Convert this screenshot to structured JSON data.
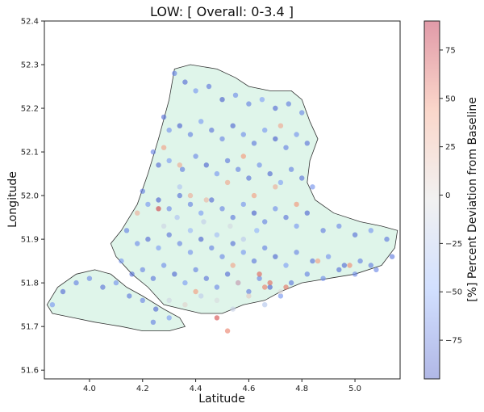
{
  "chart_data": {
    "type": "scatter",
    "title": "LOW: [ Overall: 0-3.4 ]",
    "xlabel": "Latitude",
    "ylabel": "Longitude",
    "xlim": [
      3.83,
      5.17
    ],
    "ylim": [
      51.58,
      52.4
    ],
    "xticks": [
      "4.0",
      "4.2",
      "4.4",
      "4.6",
      "4.8",
      "5.0"
    ],
    "xtick_values": [
      4.0,
      4.2,
      4.4,
      4.6,
      4.8,
      5.0
    ],
    "yticks": [
      "51.6",
      "51.7",
      "51.8",
      "51.9",
      "52.0",
      "52.1",
      "52.2",
      "52.3",
      "52.4"
    ],
    "ytick_values": [
      51.6,
      51.7,
      51.8,
      51.9,
      52.0,
      52.1,
      52.2,
      52.3,
      52.4
    ],
    "grid": false,
    "colormap": "coolwarm",
    "colorbar": {
      "label": "[%] Percent Deviation from Baseline",
      "range": [
        -95,
        90
      ],
      "ticks": [
        "75",
        "50",
        "25",
        "0",
        "−25",
        "−50",
        "−75"
      ],
      "tick_values": [
        75,
        50,
        25,
        0,
        -25,
        -50,
        -75
      ]
    },
    "region_fill": "#dff5ea",
    "region_outline": "#333333",
    "region_polygon": [
      [
        4.32,
        52.29
      ],
      [
        4.38,
        52.3
      ],
      [
        4.48,
        52.29
      ],
      [
        4.55,
        52.27
      ],
      [
        4.6,
        52.25
      ],
      [
        4.68,
        52.24
      ],
      [
        4.76,
        52.24
      ],
      [
        4.8,
        52.22
      ],
      [
        4.83,
        52.17
      ],
      [
        4.86,
        52.13
      ],
      [
        4.83,
        52.08
      ],
      [
        4.82,
        52.03
      ],
      [
        4.85,
        51.99
      ],
      [
        4.92,
        51.96
      ],
      [
        5.02,
        51.94
      ],
      [
        5.1,
        51.93
      ],
      [
        5.16,
        51.92
      ],
      [
        5.15,
        51.88
      ],
      [
        5.1,
        51.84
      ],
      [
        5.0,
        51.82
      ],
      [
        4.9,
        51.81
      ],
      [
        4.8,
        51.8
      ],
      [
        4.72,
        51.78
      ],
      [
        4.66,
        51.76
      ],
      [
        4.58,
        51.75
      ],
      [
        4.5,
        51.73
      ],
      [
        4.42,
        51.73
      ],
      [
        4.35,
        51.74
      ],
      [
        4.28,
        51.75
      ],
      [
        4.22,
        51.79
      ],
      [
        4.16,
        51.82
      ],
      [
        4.1,
        51.86
      ],
      [
        4.08,
        51.89
      ],
      [
        4.12,
        51.92
      ],
      [
        4.18,
        51.98
      ],
      [
        4.22,
        52.05
      ],
      [
        4.26,
        52.13
      ],
      [
        4.3,
        52.22
      ]
    ],
    "island_polygon": [
      [
        3.84,
        51.75
      ],
      [
        3.88,
        51.79
      ],
      [
        3.95,
        51.82
      ],
      [
        4.02,
        51.83
      ],
      [
        4.08,
        51.82
      ],
      [
        4.14,
        51.79
      ],
      [
        4.2,
        51.77
      ],
      [
        4.28,
        51.74
      ],
      [
        4.34,
        51.72
      ],
      [
        4.36,
        51.7
      ],
      [
        4.3,
        51.69
      ],
      [
        4.2,
        51.69
      ],
      [
        4.12,
        51.7
      ],
      [
        4.02,
        51.71
      ],
      [
        3.94,
        51.72
      ],
      [
        3.86,
        51.73
      ]
    ],
    "series": [
      {
        "x": [
          4.32,
          4.36,
          4.4,
          4.45,
          4.5,
          4.55,
          4.6,
          4.65,
          4.7,
          4.75,
          4.8,
          4.28,
          4.3,
          4.34,
          4.38,
          4.42,
          4.46,
          4.5,
          4.54,
          4.58,
          4.62,
          4.66,
          4.7,
          4.74,
          4.78,
          4.82,
          4.24,
          4.26,
          4.3,
          4.35,
          4.4,
          4.44,
          4.48,
          4.52,
          4.56,
          4.6,
          4.64,
          4.68,
          4.72,
          4.76,
          4.8,
          4.84,
          4.2,
          4.22,
          4.26,
          4.3,
          4.34,
          4.38,
          4.42,
          4.46,
          4.5,
          4.54,
          4.58,
          4.62,
          4.66,
          4.7,
          4.74,
          4.78,
          4.82,
          4.88,
          4.94,
          5.0,
          5.06,
          5.12,
          4.14,
          4.18,
          4.22,
          4.26,
          4.3,
          4.34,
          4.38,
          4.42,
          4.46,
          4.5,
          4.54,
          4.58,
          4.62,
          4.66,
          4.7,
          4.74,
          4.78,
          4.84,
          4.9,
          4.96,
          5.02,
          5.08,
          5.14,
          4.12,
          4.16,
          4.2,
          4.24,
          4.28,
          4.32,
          4.36,
          4.4,
          4.44,
          4.48,
          4.52,
          4.56,
          4.6,
          4.64,
          4.68,
          4.72,
          4.76,
          4.82,
          4.88,
          4.94,
          5.0,
          5.06,
          3.86,
          3.9,
          3.95,
          4.0,
          4.05,
          4.1,
          4.15,
          4.2,
          4.25,
          4.3,
          4.24,
          4.3,
          4.36,
          4.42,
          4.48,
          4.54,
          4.6,
          4.66,
          4.72,
          4.28,
          4.33,
          4.38,
          4.43,
          4.48,
          4.53,
          4.58,
          4.63,
          4.34,
          4.44,
          4.52,
          4.62,
          4.7,
          4.78,
          4.56,
          4.64,
          4.74,
          4.48,
          4.52,
          4.68,
          4.86,
          4.98,
          4.26,
          4.38,
          4.28,
          4.34,
          4.18,
          4.4,
          4.54,
          4.66,
          4.58,
          4.72
        ],
        "y": [
          52.28,
          52.26,
          52.24,
          52.25,
          52.22,
          52.23,
          52.21,
          52.22,
          52.2,
          52.21,
          52.19,
          52.18,
          52.15,
          52.16,
          52.14,
          52.17,
          52.15,
          52.13,
          52.16,
          52.14,
          52.12,
          52.15,
          52.13,
          52.11,
          52.14,
          52.12,
          52.1,
          52.07,
          52.08,
          52.06,
          52.09,
          52.07,
          52.05,
          52.08,
          52.06,
          52.04,
          52.07,
          52.05,
          52.03,
          52.06,
          52.04,
          52.02,
          52.01,
          51.98,
          51.99,
          51.97,
          52.0,
          51.98,
          51.96,
          51.99,
          51.97,
          51.95,
          51.98,
          51.96,
          51.94,
          51.97,
          51.95,
          51.93,
          51.96,
          51.92,
          51.93,
          51.91,
          51.92,
          51.9,
          51.92,
          51.89,
          51.9,
          51.88,
          51.91,
          51.89,
          51.87,
          51.9,
          51.88,
          51.86,
          51.89,
          51.87,
          51.85,
          51.88,
          51.86,
          51.84,
          51.87,
          51.85,
          51.86,
          51.84,
          51.85,
          51.83,
          51.86,
          51.85,
          51.82,
          51.83,
          51.81,
          51.84,
          51.82,
          51.8,
          51.83,
          51.81,
          51.79,
          51.82,
          51.8,
          51.78,
          51.81,
          51.79,
          51.77,
          51.8,
          51.82,
          51.81,
          51.83,
          51.82,
          51.84,
          51.75,
          51.78,
          51.8,
          51.81,
          51.79,
          51.8,
          51.77,
          51.76,
          51.74,
          51.72,
          51.71,
          51.76,
          51.75,
          51.77,
          51.76,
          51.74,
          51.77,
          51.75,
          51.78,
          51.93,
          51.95,
          51.92,
          51.94,
          51.91,
          51.93,
          51.9,
          51.92,
          52.02,
          51.99,
          52.03,
          52.0,
          52.02,
          51.98,
          51.8,
          51.82,
          51.79,
          51.72,
          51.69,
          51.8,
          51.85,
          51.84,
          51.97,
          52.0,
          52.11,
          52.07,
          51.96,
          51.78,
          51.84,
          51.79,
          52.09,
          52.16
        ],
        "values": [
          -70,
          -80,
          -60,
          -75,
          -85,
          -65,
          -70,
          -55,
          -80,
          -72,
          -66,
          -78,
          -62,
          -84,
          -70,
          -58,
          -76,
          -68,
          -82,
          -64,
          -74,
          -60,
          -86,
          -70,
          -62,
          -76,
          -68,
          -80,
          -58,
          -72,
          -66,
          -84,
          -60,
          -74,
          -70,
          -78,
          -64,
          -82,
          -56,
          -70,
          -76,
          -62,
          -72,
          -60,
          -84,
          -66,
          -78,
          -70,
          -58,
          -80,
          -68,
          -74,
          -62,
          -86,
          -70,
          -64,
          -76,
          -60,
          -82,
          -72,
          -66,
          -78,
          -60,
          -74,
          -70,
          -64,
          -80,
          -58,
          -76,
          -68,
          -62,
          -84,
          -70,
          -66,
          -78,
          -60,
          -74,
          -70,
          -82,
          -56,
          -68,
          -76,
          -62,
          -80,
          -70,
          -66,
          -72,
          -60,
          -78,
          -68,
          -74,
          -64,
          -82,
          -58,
          -70,
          -76,
          -66,
          -80,
          -62,
          -72,
          -68,
          -84,
          -60,
          -74,
          -70,
          -64,
          -78,
          -66,
          -72,
          -60,
          -80,
          -70,
          -66,
          -76,
          -62,
          -74,
          -68,
          -82,
          -58,
          -70,
          -10,
          5,
          -20,
          -5,
          -15,
          10,
          -25,
          0,
          -12,
          -30,
          -40,
          -18,
          -35,
          -8,
          -22,
          -45,
          -28,
          25,
          35,
          40,
          30,
          45,
          20,
          60,
          55,
          65,
          50,
          58,
          40,
          48,
          70,
          30,
          38,
          32,
          28,
          42,
          36,
          52,
          44,
          34
        ]
      }
    ]
  }
}
